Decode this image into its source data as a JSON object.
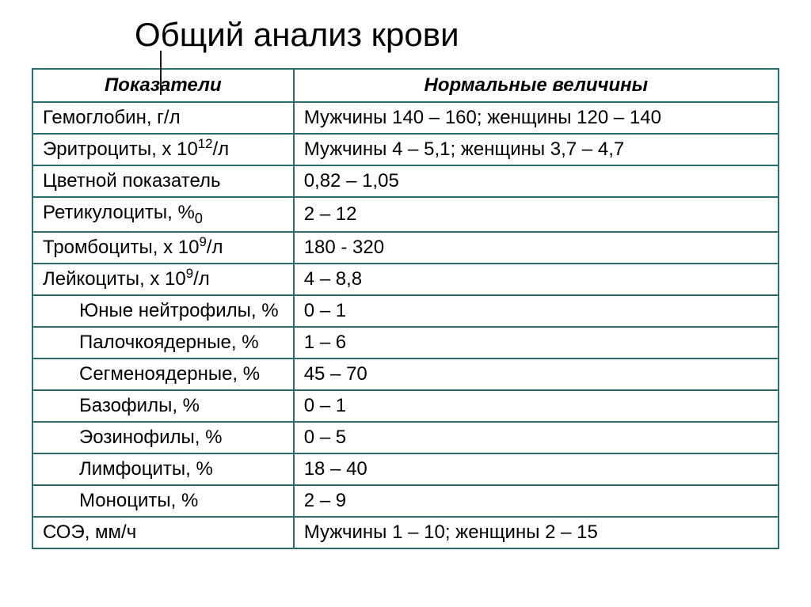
{
  "title": "Общий анализ крови",
  "table": {
    "border_color": "#2a6b6b",
    "background_color": "#ffffff",
    "text_color": "#000000",
    "header_fontsize": 24,
    "cell_fontsize": 24,
    "columns": [
      "Показатели",
      "Нормальные величины"
    ],
    "column_widths": [
      0.35,
      0.65
    ],
    "rows": [
      {
        "param": "Гемоглобин, г/л",
        "value": "Мужчины 140 – 160; женщины 120 – 140",
        "indent": false,
        "sup": null
      },
      {
        "param_pre": "Эритроциты, х 10",
        "sup": "12",
        "param_post": "/л",
        "value": "Мужчины 4 – 5,1; женщины 3,7 – 4,7",
        "indent": false
      },
      {
        "param": "Цветной показатель",
        "value": "0,82 – 1,05",
        "indent": false,
        "sup": null
      },
      {
        "param_pre": "Ретикулоциты, %",
        "sup": null,
        "param_post": "",
        "sub": "0",
        "value": "2 – 12",
        "indent": false
      },
      {
        "param_pre": "Тромбоциты, х 10",
        "sup": "9",
        "param_post": "/л",
        "value": "180 - 320",
        "indent": false
      },
      {
        "param_pre": "Лейкоциты, х 10",
        "sup": "9",
        "param_post": "/л",
        "value": "4 – 8,8",
        "indent": false
      },
      {
        "param": "Юные нейтрофилы, %",
        "value": "0 – 1",
        "indent": true,
        "sup": null
      },
      {
        "param": "Палочкоядерные, %",
        "value": "1 – 6",
        "indent": true,
        "sup": null
      },
      {
        "param": "Сегменоядерные, %",
        "value": "45 – 70",
        "indent": true,
        "sup": null
      },
      {
        "param": "Базофилы, %",
        "value": "0 – 1",
        "indent": true,
        "sup": null
      },
      {
        "param": "Эозинофилы, %",
        "value": "0 – 5",
        "indent": true,
        "sup": null
      },
      {
        "param": "Лимфоциты, %",
        "value": "18 – 40",
        "indent": true,
        "sup": null
      },
      {
        "param": "Моноциты, %",
        "value": "2 – 9",
        "indent": true,
        "sup": null
      },
      {
        "param": "СОЭ, мм/ч",
        "value": "Мужчины 1 – 10; женщины 2 – 15",
        "indent": false,
        "sup": null
      }
    ]
  }
}
